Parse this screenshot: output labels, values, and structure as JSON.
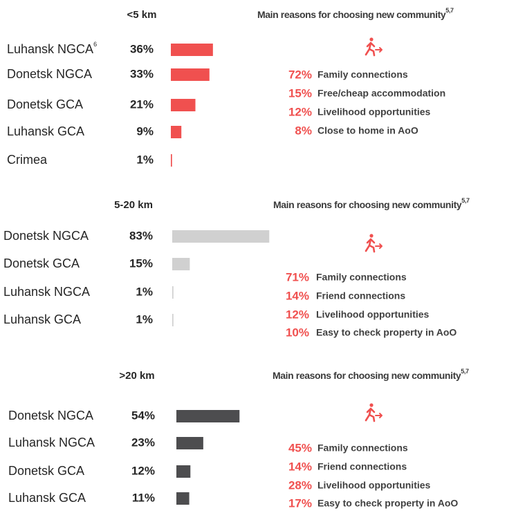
{
  "chart_data": [
    {
      "type": "bar",
      "title": "<5 km",
      "color": "#f0504f",
      "xlim": [
        0,
        100
      ],
      "categories": [
        "Luhansk NGCA",
        "Donetsk NGCA",
        "Donetsk GCA",
        "Luhansk GCA",
        "Crimea"
      ],
      "footnote_marks": [
        "6",
        null,
        null,
        null,
        null
      ],
      "values": [
        36,
        33,
        21,
        9,
        1
      ],
      "value_labels": [
        "36%",
        "33%",
        "21%",
        "9%",
        "1%"
      ],
      "reasons": {
        "title": "Main reasons for choosing new community",
        "title_note": "5,7",
        "labels": [
          "Family connections",
          "Free/cheap accommodation",
          "Livelihood opportunities",
          "Close to home in AoO"
        ],
        "values": [
          72,
          15,
          12,
          8
        ],
        "value_labels": [
          "72%",
          "15%",
          "12%",
          "8%"
        ]
      }
    },
    {
      "type": "bar",
      "title": "5-20 km",
      "color": "#d0d0d0",
      "xlim": [
        0,
        100
      ],
      "categories": [
        "Donetsk NGCA",
        "Donetsk GCA",
        "Luhansk NGCA",
        "Luhansk GCA"
      ],
      "values": [
        83,
        15,
        1,
        1
      ],
      "value_labels": [
        "83%",
        "15%",
        "1%",
        "1%"
      ],
      "reasons": {
        "title": "Main reasons for choosing new community",
        "title_note": "5,7",
        "labels": [
          "Family connections",
          "Friend connections",
          "Livelihood opportunities",
          "Easy to check property in AoO"
        ],
        "values": [
          71,
          14,
          12,
          10
        ],
        "value_labels": [
          "71%",
          "14%",
          "12%",
          "10%"
        ]
      }
    },
    {
      "type": "bar",
      "title": ">20 km",
      "color": "#4d4d4f",
      "xlim": [
        0,
        100
      ],
      "categories": [
        "Donetsk NGCA",
        "Luhansk NGCA",
        "Donetsk GCA",
        "Luhansk GCA"
      ],
      "values": [
        54,
        23,
        12,
        11
      ],
      "value_labels": [
        "54%",
        "23%",
        "12%",
        "11%"
      ],
      "reasons": {
        "title": "Main reasons for choosing new community",
        "title_note": "5,7",
        "labels": [
          "Family connections",
          "Friend connections",
          "Livelihood opportunities",
          "Easy to check property in AoO"
        ],
        "values": [
          45,
          14,
          28,
          17
        ],
        "value_labels": [
          "45%",
          "14%",
          "28%",
          "17%"
        ]
      }
    }
  ]
}
